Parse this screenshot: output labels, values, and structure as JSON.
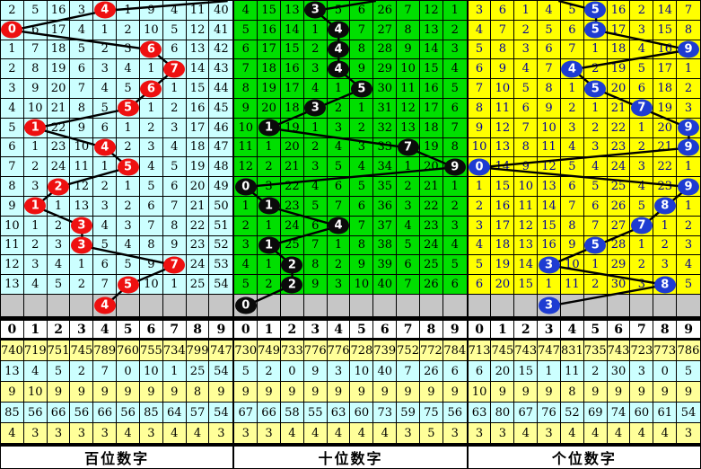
{
  "colors": {
    "grid_line": "#000000",
    "gray_row_bg": "#c6c6c6",
    "stat_yellow_bg": "#ffff99",
    "stat_cyan_bg": "#ccffff",
    "header_bg": "#ffffff",
    "trend_line": "#000000"
  },
  "digit_headers": [
    "0",
    "1",
    "2",
    "3",
    "4",
    "5",
    "6",
    "7",
    "8",
    "9"
  ],
  "panels": [
    {
      "name": "hundreds",
      "footer_label": "百位数字",
      "cell_bg": "#ccffff",
      "cell_text": "#000000",
      "ball_color": "#ee1010",
      "entry_x_units": 978,
      "rows": [
        {
          "cells": [
            "2",
            "5",
            "16",
            "3",
            "4",
            "1",
            "9",
            "4",
            "11",
            "40"
          ],
          "ball": 4
        },
        {
          "cells": [
            "0",
            "6",
            "17",
            "4",
            "1",
            "2",
            "10",
            "5",
            "12",
            "41"
          ],
          "ball": 0
        },
        {
          "cells": [
            "1",
            "7",
            "18",
            "5",
            "2",
            "3",
            "6",
            "6",
            "13",
            "42"
          ],
          "ball": 6
        },
        {
          "cells": [
            "2",
            "8",
            "19",
            "6",
            "3",
            "4",
            "1",
            "7",
            "14",
            "43"
          ],
          "ball": 7
        },
        {
          "cells": [
            "3",
            "9",
            "20",
            "7",
            "4",
            "5",
            "6",
            "1",
            "15",
            "44"
          ],
          "ball": 6
        },
        {
          "cells": [
            "4",
            "10",
            "21",
            "8",
            "5",
            "5",
            "1",
            "2",
            "16",
            "45"
          ],
          "ball": 5
        },
        {
          "cells": [
            "5",
            "1",
            "22",
            "9",
            "6",
            "1",
            "2",
            "3",
            "17",
            "46"
          ],
          "ball": 1
        },
        {
          "cells": [
            "6",
            "1",
            "23",
            "10",
            "4",
            "2",
            "3",
            "4",
            "18",
            "47"
          ],
          "ball": 4
        },
        {
          "cells": [
            "7",
            "2",
            "24",
            "11",
            "1",
            "5",
            "4",
            "5",
            "19",
            "48"
          ],
          "ball": 5
        },
        {
          "cells": [
            "8",
            "3",
            "2",
            "12",
            "2",
            "1",
            "5",
            "6",
            "20",
            "49"
          ],
          "ball": 2
        },
        {
          "cells": [
            "9",
            "1",
            "1",
            "13",
            "3",
            "2",
            "6",
            "7",
            "21",
            "50"
          ],
          "ball": 1
        },
        {
          "cells": [
            "10",
            "1",
            "2",
            "3",
            "4",
            "3",
            "7",
            "8",
            "22",
            "51"
          ],
          "ball": 3
        },
        {
          "cells": [
            "11",
            "2",
            "3",
            "3",
            "5",
            "4",
            "8",
            "9",
            "23",
            "52"
          ],
          "ball": 3
        },
        {
          "cells": [
            "12",
            "3",
            "4",
            "1",
            "6",
            "5",
            "9",
            "7",
            "24",
            "53"
          ],
          "ball": 7
        },
        {
          "cells": [
            "13",
            "4",
            "5",
            "2",
            "7",
            "5",
            "10",
            "1",
            "25",
            "54"
          ],
          "ball": 5
        }
      ],
      "predict_ball": 4,
      "stats": [
        {
          "bg": "yellow",
          "values": [
            "740",
            "719",
            "751",
            "745",
            "789",
            "760",
            "755",
            "734",
            "799",
            "747"
          ]
        },
        {
          "bg": "cyan",
          "values": [
            "13",
            "4",
            "5",
            "2",
            "7",
            "0",
            "10",
            "1",
            "25",
            "54"
          ]
        },
        {
          "bg": "yellow",
          "values": [
            "9",
            "10",
            "9",
            "9",
            "9",
            "9",
            "9",
            "9",
            "8",
            "9"
          ]
        },
        {
          "bg": "cyan",
          "values": [
            "85",
            "56",
            "66",
            "56",
            "66",
            "56",
            "85",
            "64",
            "57",
            "54"
          ]
        },
        {
          "bg": "yellow",
          "values": [
            "4",
            "3",
            "3",
            "3",
            "3",
            "4",
            "3",
            "4",
            "4",
            "3"
          ]
        }
      ]
    },
    {
      "name": "tens",
      "footer_label": "十位数字",
      "cell_bg": "#00df00",
      "cell_text": "#000000",
      "ball_color": "#0a0a0a",
      "entry_x_units": 611,
      "rows": [
        {
          "cells": [
            "4",
            "15",
            "13",
            "3",
            "5",
            "6",
            "26",
            "7",
            "12",
            "1"
          ],
          "ball": 3
        },
        {
          "cells": [
            "5",
            "16",
            "14",
            "1",
            "4",
            "7",
            "27",
            "8",
            "13",
            "2"
          ],
          "ball": 4
        },
        {
          "cells": [
            "6",
            "17",
            "15",
            "2",
            "4",
            "8",
            "28",
            "9",
            "14",
            "3"
          ],
          "ball": 4
        },
        {
          "cells": [
            "7",
            "18",
            "16",
            "3",
            "4",
            "9",
            "29",
            "10",
            "15",
            "4"
          ],
          "ball": 4
        },
        {
          "cells": [
            "8",
            "19",
            "17",
            "4",
            "1",
            "5",
            "30",
            "11",
            "16",
            "5"
          ],
          "ball": 5
        },
        {
          "cells": [
            "9",
            "20",
            "18",
            "3",
            "2",
            "1",
            "31",
            "12",
            "17",
            "6"
          ],
          "ball": 3
        },
        {
          "cells": [
            "10",
            "1",
            "19",
            "1",
            "3",
            "2",
            "32",
            "13",
            "18",
            "7"
          ],
          "ball": 1
        },
        {
          "cells": [
            "11",
            "1",
            "20",
            "2",
            "4",
            "3",
            "33",
            "7",
            "19",
            "8"
          ],
          "ball": 7
        },
        {
          "cells": [
            "12",
            "2",
            "21",
            "3",
            "5",
            "4",
            "34",
            "1",
            "20",
            "9"
          ],
          "ball": 9
        },
        {
          "cells": [
            "0",
            "3",
            "22",
            "4",
            "6",
            "5",
            "35",
            "2",
            "21",
            "1"
          ],
          "ball": 0
        },
        {
          "cells": [
            "1",
            "1",
            "23",
            "5",
            "7",
            "6",
            "36",
            "3",
            "22",
            "2"
          ],
          "ball": 1
        },
        {
          "cells": [
            "2",
            "1",
            "24",
            "6",
            "4",
            "7",
            "37",
            "4",
            "23",
            "3"
          ],
          "ball": 4
        },
        {
          "cells": [
            "3",
            "1",
            "25",
            "7",
            "1",
            "8",
            "38",
            "5",
            "24",
            "4"
          ],
          "ball": 1
        },
        {
          "cells": [
            "4",
            "1",
            "2",
            "8",
            "2",
            "9",
            "39",
            "6",
            "25",
            "5"
          ],
          "ball": 2
        },
        {
          "cells": [
            "5",
            "2",
            "2",
            "9",
            "3",
            "10",
            "40",
            "7",
            "26",
            "6"
          ],
          "ball": 2
        }
      ],
      "predict_ball": 0,
      "stats": [
        {
          "bg": "yellow",
          "values": [
            "730",
            "749",
            "733",
            "776",
            "776",
            "728",
            "739",
            "752",
            "772",
            "784"
          ]
        },
        {
          "bg": "cyan",
          "values": [
            "5",
            "2",
            "0",
            "9",
            "3",
            "10",
            "40",
            "7",
            "26",
            "6"
          ]
        },
        {
          "bg": "yellow",
          "values": [
            "9",
            "9",
            "9",
            "9",
            "9",
            "9",
            "9",
            "9",
            "9",
            "9"
          ]
        },
        {
          "bg": "cyan",
          "values": [
            "67",
            "66",
            "58",
            "55",
            "63",
            "60",
            "73",
            "59",
            "75",
            "56"
          ]
        },
        {
          "bg": "yellow",
          "values": [
            "3",
            "3",
            "4",
            "4",
            "4",
            "4",
            "4",
            "3",
            "5",
            "3"
          ]
        }
      ]
    },
    {
      "name": "units",
      "footer_label": "个位数字",
      "cell_bg": "#ffff00",
      "cell_text": "#000099",
      "ball_color": "#1e3cd2",
      "entry_x_units": 388,
      "rows": [
        {
          "cells": [
            "3",
            "6",
            "1",
            "4",
            "5",
            "5",
            "16",
            "2",
            "14",
            "7"
          ],
          "ball": 5
        },
        {
          "cells": [
            "4",
            "7",
            "2",
            "5",
            "6",
            "5",
            "17",
            "3",
            "15",
            "8"
          ],
          "ball": 5
        },
        {
          "cells": [
            "5",
            "8",
            "3",
            "6",
            "7",
            "1",
            "18",
            "4",
            "16",
            "9"
          ],
          "ball": 9
        },
        {
          "cells": [
            "6",
            "9",
            "4",
            "7",
            "4",
            "2",
            "19",
            "5",
            "17",
            "1"
          ],
          "ball": 4
        },
        {
          "cells": [
            "7",
            "10",
            "5",
            "8",
            "1",
            "5",
            "20",
            "6",
            "18",
            "2"
          ],
          "ball": 5
        },
        {
          "cells": [
            "8",
            "11",
            "6",
            "9",
            "2",
            "1",
            "21",
            "7",
            "19",
            "3"
          ],
          "ball": 7
        },
        {
          "cells": [
            "9",
            "12",
            "7",
            "10",
            "3",
            "2",
            "22",
            "1",
            "20",
            "9"
          ],
          "ball": 9
        },
        {
          "cells": [
            "10",
            "13",
            "8",
            "11",
            "4",
            "3",
            "23",
            "2",
            "21",
            "9"
          ],
          "ball": 9
        },
        {
          "cells": [
            "0",
            "14",
            "9",
            "12",
            "5",
            "4",
            "24",
            "3",
            "22",
            "1"
          ],
          "ball": 0
        },
        {
          "cells": [
            "1",
            "15",
            "10",
            "13",
            "6",
            "5",
            "25",
            "4",
            "23",
            "9"
          ],
          "ball": 9
        },
        {
          "cells": [
            "2",
            "16",
            "11",
            "14",
            "7",
            "6",
            "26",
            "5",
            "8",
            "1"
          ],
          "ball": 8
        },
        {
          "cells": [
            "3",
            "17",
            "12",
            "15",
            "8",
            "7",
            "27",
            "7",
            "1",
            "2"
          ],
          "ball": 7
        },
        {
          "cells": [
            "4",
            "18",
            "13",
            "16",
            "9",
            "5",
            "28",
            "1",
            "2",
            "3"
          ],
          "ball": 5
        },
        {
          "cells": [
            "5",
            "19",
            "14",
            "3",
            "10",
            "1",
            "29",
            "2",
            "3",
            "4"
          ],
          "ball": 3
        },
        {
          "cells": [
            "6",
            "20",
            "15",
            "1",
            "11",
            "2",
            "30",
            "3",
            "8",
            "5"
          ],
          "ball": 8
        }
      ],
      "predict_ball": 3,
      "stats": [
        {
          "bg": "yellow",
          "values": [
            "713",
            "745",
            "743",
            "747",
            "831",
            "735",
            "743",
            "723",
            "773",
            "786"
          ]
        },
        {
          "bg": "cyan",
          "values": [
            "6",
            "20",
            "15",
            "1",
            "11",
            "2",
            "30",
            "3",
            "0",
            "5"
          ]
        },
        {
          "bg": "yellow",
          "values": [
            "10",
            "9",
            "9",
            "9",
            "8",
            "9",
            "9",
            "9",
            "9",
            "9"
          ]
        },
        {
          "bg": "cyan",
          "values": [
            "63",
            "80",
            "67",
            "76",
            "52",
            "69",
            "74",
            "60",
            "61",
            "54"
          ]
        },
        {
          "bg": "yellow",
          "values": [
            "3",
            "3",
            "4",
            "3",
            "4",
            "4",
            "4",
            "4",
            "4",
            "3"
          ]
        }
      ]
    }
  ]
}
